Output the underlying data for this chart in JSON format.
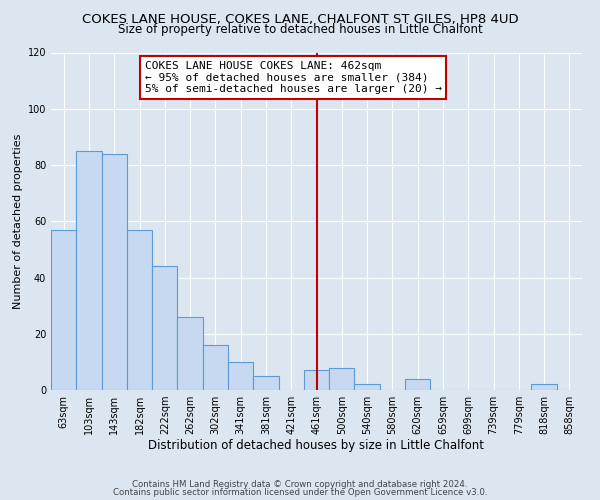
{
  "title": "COKES LANE HOUSE, COKES LANE, CHALFONT ST GILES, HP8 4UD",
  "subtitle": "Size of property relative to detached houses in Little Chalfont",
  "xlabel": "Distribution of detached houses by size in Little Chalfont",
  "ylabel": "Number of detached properties",
  "bar_labels": [
    "63sqm",
    "103sqm",
    "143sqm",
    "182sqm",
    "222sqm",
    "262sqm",
    "302sqm",
    "341sqm",
    "381sqm",
    "421sqm",
    "461sqm",
    "500sqm",
    "540sqm",
    "580sqm",
    "620sqm",
    "659sqm",
    "699sqm",
    "739sqm",
    "779sqm",
    "818sqm",
    "858sqm"
  ],
  "bar_values": [
    57,
    85,
    84,
    57,
    44,
    26,
    16,
    10,
    5,
    0,
    7,
    8,
    2,
    0,
    4,
    0,
    0,
    0,
    0,
    2,
    0
  ],
  "bar_color": "#c6d9f0",
  "bar_edge_color": "#5b9bd5",
  "bar_width": 1.0,
  "vline_index": 10,
  "vline_color": "#c00000",
  "annotation_line1": "COKES LANE HOUSE COKES LANE: 462sqm",
  "annotation_line2": "← 95% of detached houses are smaller (384)",
  "annotation_line3": "5% of semi-detached houses are larger (20) →",
  "annotation_box_color": "#ffffff",
  "annotation_box_edge": "#c00000",
  "ylim": [
    0,
    120
  ],
  "yticks": [
    0,
    20,
    40,
    60,
    80,
    100,
    120
  ],
  "footer_line1": "Contains HM Land Registry data © Crown copyright and database right 2024.",
  "footer_line2": "Contains public sector information licensed under the Open Government Licence v3.0.",
  "bg_color": "#dce6f1",
  "plot_bg_color": "#dce6f1",
  "title_fontsize": 9.5,
  "subtitle_fontsize": 8.5,
  "xlabel_fontsize": 8.5,
  "ylabel_fontsize": 8,
  "tick_fontsize": 7,
  "annotation_fontsize": 8,
  "footer_fontsize": 6.2
}
